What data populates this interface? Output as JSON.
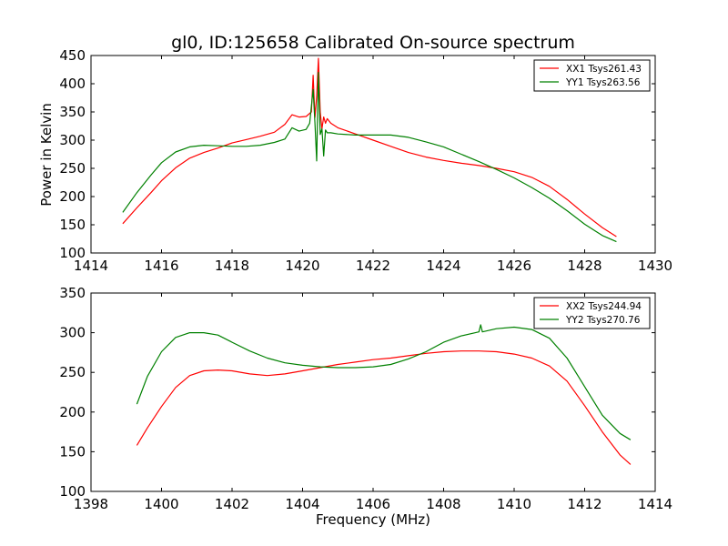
{
  "figure": {
    "title": "gl0, ID:125658 Calibrated On-source spectrum",
    "ylabel": "Power in Kelvin",
    "xlabel": "Frequency (MHz)"
  },
  "chart_data": [
    {
      "type": "line",
      "title": "gl0, ID:125658 Calibrated On-source spectrum",
      "xlabel": "",
      "ylabel": "Power in Kelvin",
      "xlim": [
        1414,
        1430
      ],
      "ylim": [
        100,
        450
      ],
      "xticks": [
        1414,
        1416,
        1418,
        1420,
        1422,
        1424,
        1426,
        1428,
        1430
      ],
      "yticks": [
        100,
        150,
        200,
        250,
        300,
        350,
        400,
        450
      ],
      "legend_position": "top-right",
      "series": [
        {
          "name": "XX1 Tsys261.43",
          "color": "#ff0000",
          "x": [
            1414.9,
            1415.3,
            1415.7,
            1416.0,
            1416.4,
            1416.8,
            1417.2,
            1417.6,
            1418.0,
            1418.4,
            1418.8,
            1419.2,
            1419.5,
            1419.7,
            1419.9,
            1420.1,
            1420.25,
            1420.3,
            1420.35,
            1420.4,
            1420.45,
            1420.5,
            1420.55,
            1420.6,
            1420.65,
            1420.7,
            1420.8,
            1421.0,
            1421.5,
            1422.0,
            1422.5,
            1423.0,
            1423.5,
            1424.0,
            1424.5,
            1425.0,
            1425.5,
            1426.0,
            1426.5,
            1427.0,
            1427.5,
            1428.0,
            1428.5,
            1428.9
          ],
          "values": [
            152,
            180,
            207,
            228,
            251,
            268,
            278,
            286,
            295,
            301,
            307,
            314,
            328,
            345,
            341,
            342,
            350,
            415,
            340,
            378,
            445,
            350,
            320,
            341,
            330,
            338,
            330,
            322,
            311,
            300,
            289,
            278,
            270,
            264,
            259,
            255,
            250,
            244,
            234,
            218,
            195,
            169,
            145,
            129
          ]
        },
        {
          "name": "YY1 Tsys263.56",
          "color": "#008000",
          "x": [
            1414.9,
            1415.3,
            1415.7,
            1416.0,
            1416.4,
            1416.8,
            1417.2,
            1417.6,
            1418.0,
            1418.4,
            1418.8,
            1419.2,
            1419.5,
            1419.7,
            1419.9,
            1420.1,
            1420.2,
            1420.3,
            1420.35,
            1420.4,
            1420.45,
            1420.5,
            1420.55,
            1420.6,
            1420.65,
            1420.7,
            1420.8,
            1421.0,
            1421.5,
            1422.0,
            1422.5,
            1423.0,
            1423.5,
            1424.0,
            1424.5,
            1425.0,
            1425.5,
            1426.0,
            1426.5,
            1427.0,
            1427.5,
            1428.0,
            1428.5,
            1428.9
          ],
          "values": [
            172,
            207,
            238,
            260,
            279,
            288,
            291,
            290,
            289,
            289,
            291,
            296,
            302,
            322,
            316,
            319,
            330,
            390,
            330,
            263,
            420,
            310,
            320,
            272,
            318,
            313,
            313,
            311,
            309,
            309,
            309,
            305,
            297,
            288,
            275,
            262,
            248,
            233,
            216,
            197,
            175,
            151,
            131,
            120
          ]
        }
      ]
    },
    {
      "type": "line",
      "title": "",
      "xlabel": "Frequency (MHz)",
      "ylabel": "",
      "xlim": [
        1398,
        1414
      ],
      "ylim": [
        100,
        350
      ],
      "xticks": [
        1398,
        1400,
        1402,
        1404,
        1406,
        1408,
        1410,
        1412,
        1414
      ],
      "yticks": [
        100,
        150,
        200,
        250,
        300,
        350
      ],
      "legend_position": "top-right",
      "series": [
        {
          "name": "XX2 Tsys244.94",
          "color": "#ff0000",
          "x": [
            1399.3,
            1399.6,
            1400.0,
            1400.4,
            1400.8,
            1401.2,
            1401.6,
            1402.0,
            1402.5,
            1403.0,
            1403.5,
            1404.0,
            1404.5,
            1405.0,
            1405.5,
            1406.0,
            1406.5,
            1407.0,
            1407.5,
            1408.0,
            1408.5,
            1409.0,
            1409.5,
            1410.0,
            1410.5,
            1411.0,
            1411.5,
            1412.0,
            1412.5,
            1413.0,
            1413.3
          ],
          "values": [
            158,
            180,
            207,
            231,
            246,
            252,
            253,
            252,
            248,
            246,
            248,
            252,
            256,
            260,
            263,
            266,
            268,
            271,
            274,
            276,
            277,
            277,
            276,
            273,
            268,
            258,
            239,
            208,
            175,
            146,
            134
          ]
        },
        {
          "name": "YY2 Tsys270.76",
          "color": "#008000",
          "x": [
            1399.3,
            1399.6,
            1400.0,
            1400.4,
            1400.8,
            1401.2,
            1401.6,
            1402.0,
            1402.5,
            1403.0,
            1403.5,
            1404.0,
            1404.5,
            1405.0,
            1405.5,
            1406.0,
            1406.5,
            1407.0,
            1407.5,
            1408.0,
            1408.5,
            1409.0,
            1409.05,
            1409.1,
            1409.5,
            1410.0,
            1410.5,
            1411.0,
            1411.5,
            1412.0,
            1412.5,
            1413.0,
            1413.3
          ],
          "values": [
            210,
            245,
            276,
            294,
            300,
            300,
            297,
            288,
            277,
            268,
            262,
            259,
            257,
            256,
            256,
            257,
            260,
            267,
            276,
            288,
            296,
            301,
            310,
            301,
            305,
            307,
            304,
            293,
            268,
            232,
            196,
            173,
            165
          ]
        }
      ]
    }
  ]
}
